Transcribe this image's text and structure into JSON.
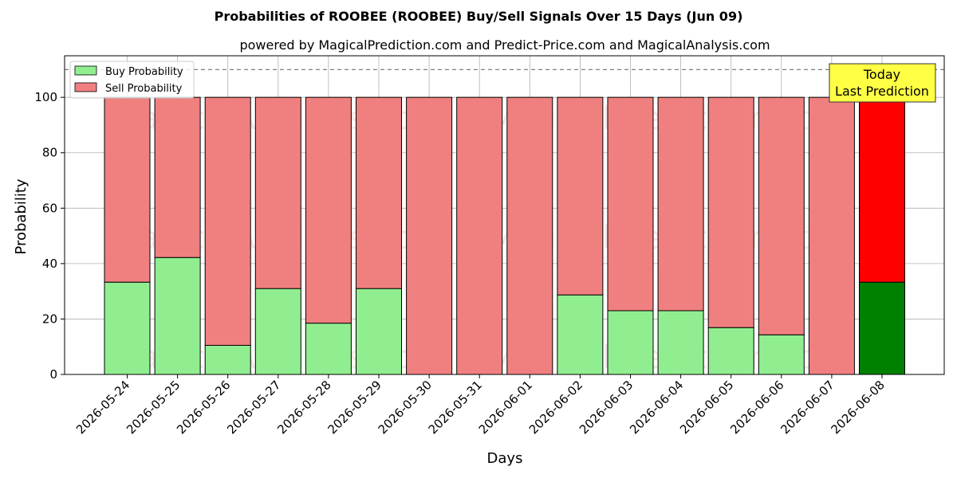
{
  "chart_data": {
    "type": "bar",
    "stacked": true,
    "title": "Probabilities of ROOBEE (ROOBEE) Buy/Sell Signals Over 15 Days (Jun 09)",
    "subtitle": "powered by MagicalPrediction.com and Predict-Price.com and MagicalAnalysis.com",
    "xlabel": "Days",
    "ylabel": "Probability",
    "ylim": [
      0,
      115
    ],
    "yticks": [
      0,
      20,
      40,
      60,
      80,
      100
    ],
    "reference_line": 110,
    "grid": true,
    "legend_position": "top-left",
    "categories": [
      "2026-05-24",
      "2026-05-25",
      "2026-05-26",
      "2026-05-27",
      "2026-05-28",
      "2026-05-29",
      "2026-05-30",
      "2026-05-31",
      "2026-06-01",
      "2026-06-02",
      "2026-06-03",
      "2026-06-04",
      "2026-06-05",
      "2026-06-06",
      "2026-06-07",
      "2026-06-08"
    ],
    "series": [
      {
        "name": "Buy Probability",
        "color": "#90ee90",
        "highlight_color": "#008000",
        "values": [
          33.3,
          42.2,
          10.5,
          31.0,
          18.5,
          31.0,
          0,
          0,
          0,
          28.7,
          23.0,
          23.0,
          16.9,
          14.3,
          0,
          33.3
        ]
      },
      {
        "name": "Sell Probability",
        "color": "#f08080",
        "highlight_color": "#ff0000",
        "values": [
          66.7,
          57.8,
          89.5,
          69.0,
          81.5,
          69.0,
          100,
          100,
          100,
          71.3,
          77.0,
          77.0,
          83.1,
          85.7,
          100,
          66.7
        ]
      }
    ],
    "annotation": {
      "line1": "Today",
      "line2": "Last Prediction",
      "color": "#ffff44"
    },
    "watermarks": [
      "MagicalAnalysis.com",
      "MagicalPrediction.com"
    ]
  }
}
